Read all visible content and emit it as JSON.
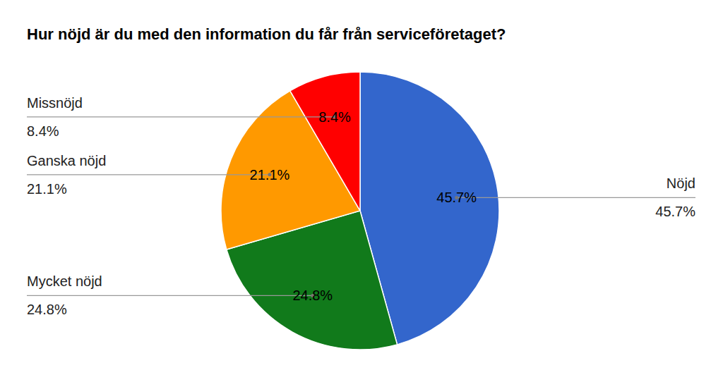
{
  "chart_data": {
    "type": "pie",
    "title": "Hur nöjd är du med den information du får från serviceföretaget?",
    "categories": [
      "Nöjd",
      "Mycket nöjd",
      "Ganska nöjd",
      "Missnöjd"
    ],
    "values": [
      45.7,
      24.8,
      21.1,
      8.4
    ],
    "value_labels": [
      "45.7%",
      "24.8%",
      "21.1%",
      "8.4%"
    ],
    "colors": [
      "#3366cc",
      "#117a1b",
      "#ff9900",
      "#ff0000"
    ],
    "data_labels": true
  }
}
